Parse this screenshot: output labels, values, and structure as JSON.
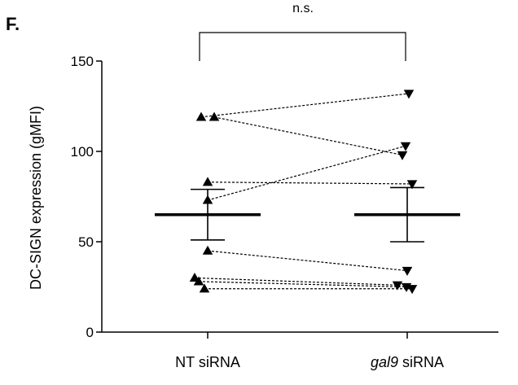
{
  "chart_data": {
    "type": "scatter",
    "panel_label": "F.",
    "ylabel": "DC-SIGN expression (gMFI)",
    "ylim": [
      0,
      150
    ],
    "yticks": [
      0,
      50,
      100,
      150
    ],
    "categories": [
      "NT siRNA",
      "gal9 siRNA"
    ],
    "significance": "n.s.",
    "grid": false,
    "pairs": [
      {
        "NT siRNA": 119,
        "gal9 siRNA": 132
      },
      {
        "NT siRNA": 119,
        "gal9 siRNA": 98
      },
      {
        "NT siRNA": 83,
        "gal9 siRNA": 82
      },
      {
        "NT siRNA": 73,
        "gal9 siRNA": 103
      },
      {
        "NT siRNA": 45,
        "gal9 siRNA": 34
      },
      {
        "NT siRNA": 30,
        "gal9 siRNA": 26
      },
      {
        "NT siRNA": 28,
        "gal9 siRNA": 25
      },
      {
        "NT siRNA": 24,
        "gal9 siRNA": 24
      }
    ],
    "summary": [
      {
        "category": "NT siRNA",
        "mean": 65,
        "error_low": 51,
        "error_high": 79
      },
      {
        "category": "gal9 siRNA",
        "mean": 65,
        "error_low": 50,
        "error_high": 80
      }
    ],
    "markers": {
      "NT siRNA": "triangle-up",
      "gal9 siRNA": "triangle-down"
    },
    "colors": {
      "marker": "#000000",
      "line": "#000000"
    }
  }
}
